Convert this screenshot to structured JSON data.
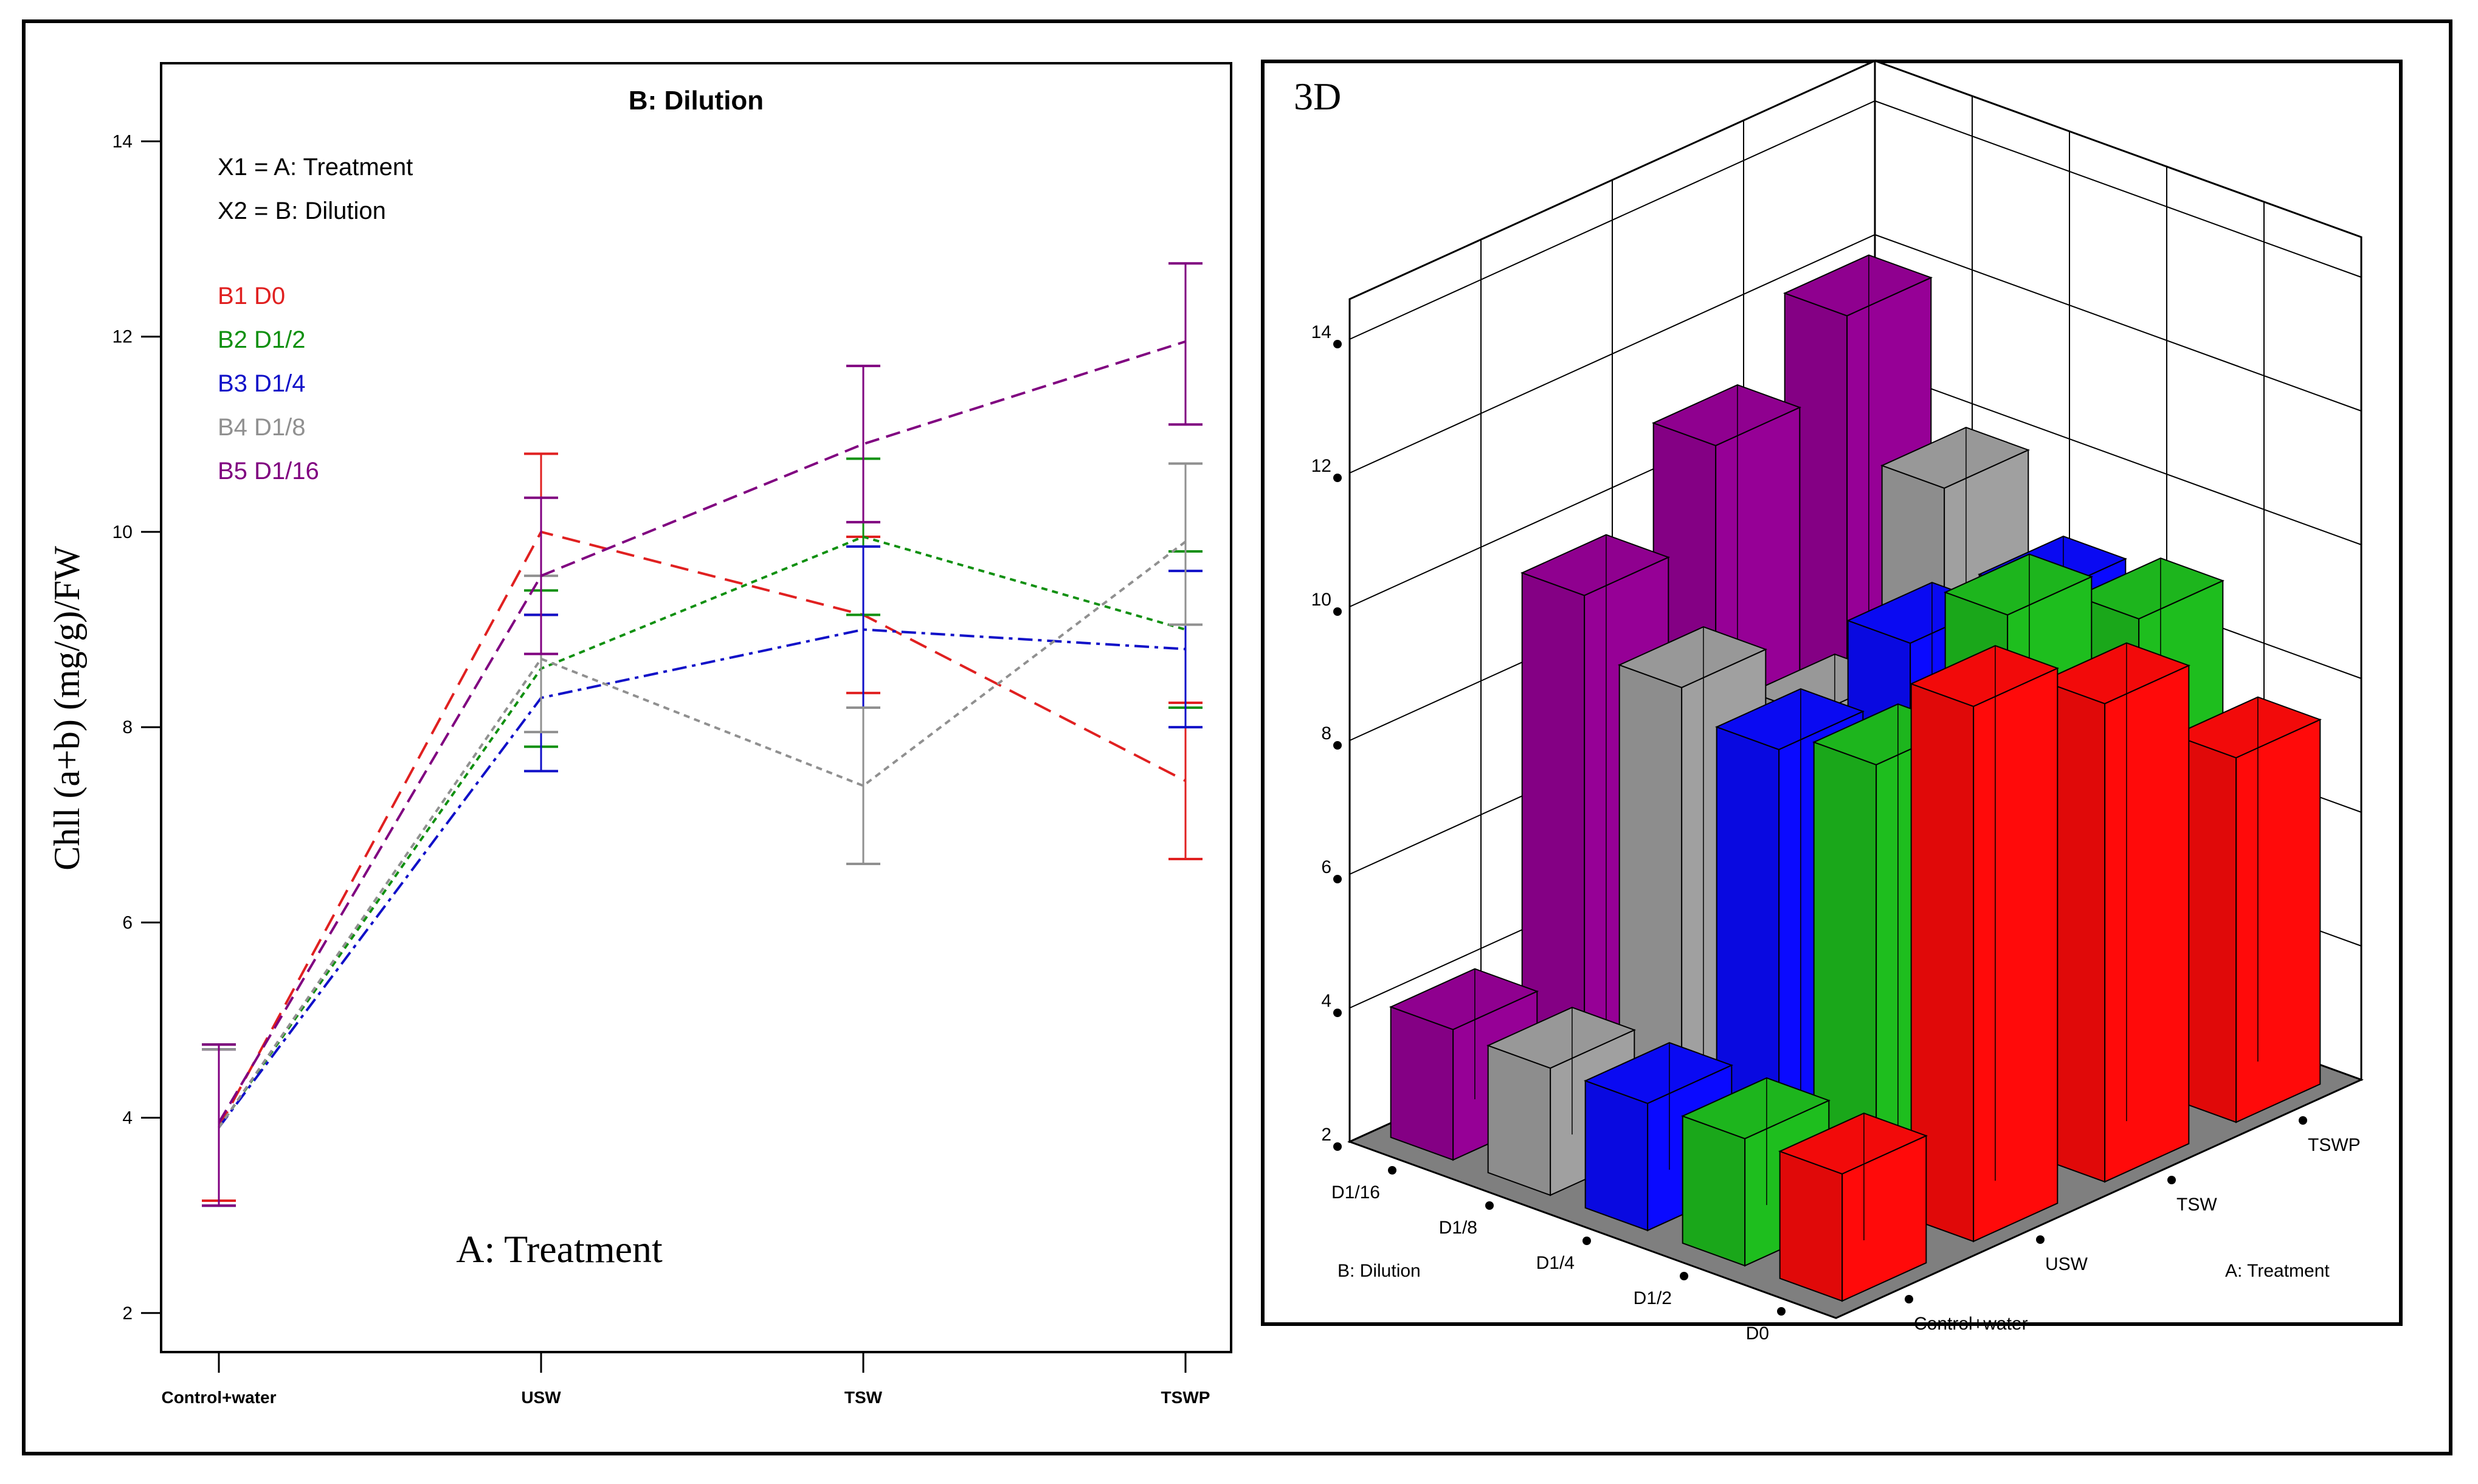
{
  "line_plot": {
    "y_axis_label": "Chll (a+b) (mg/g)/FW",
    "x_axis_label": "A: Treatment",
    "title": "B: Dilution",
    "factor_x1": "X1 = A: Treatment",
    "factor_x2": "X2 = B: Dilution"
  },
  "plot3d": {
    "label": "3D",
    "axis_label_dilution": "B: Dilution",
    "axis_label_treatment": "A: Treatment",
    "z_ticks": [
      "2",
      "4",
      "6",
      "8",
      "10",
      "12",
      "14"
    ],
    "dilutions": [
      "D0",
      "D1/2",
      "D1/4",
      "D1/8",
      "D1/16"
    ],
    "treatments": [
      "Control+water",
      "USW",
      "TSW",
      "TSWP"
    ]
  },
  "chart_data": [
    {
      "type": "line",
      "title": "B: Dilution",
      "xlabel": "A: Treatment",
      "ylabel": "Chll (a+b) (mg/g)/FW",
      "categories": [
        "Control+water",
        "USW",
        "TSW",
        "TSWP"
      ],
      "ylim": [
        1.6,
        14.8
      ],
      "yticks": [
        2,
        4,
        6,
        8,
        10,
        12,
        14
      ],
      "series": [
        {
          "name": "B1 D0",
          "color": "#e02020",
          "dash": "long",
          "values": [
            3.9,
            10.0,
            9.15,
            7.45
          ],
          "error_low": [
            3.15,
            9.15,
            8.35,
            6.65
          ],
          "error_high": [
            4.7,
            10.8,
            9.95,
            8.25
          ]
        },
        {
          "name": "B2 D1/2",
          "color": "#109010",
          "dash": "dot",
          "values": [
            3.9,
            8.6,
            9.95,
            9.0
          ],
          "error_low": [
            3.1,
            7.8,
            9.15,
            8.2
          ],
          "error_high": [
            4.75,
            9.4,
            10.75,
            9.8
          ]
        },
        {
          "name": "B3 D1/4",
          "color": "#1010c8",
          "dash": "dashdot",
          "values": [
            3.9,
            8.3,
            9.0,
            8.8
          ],
          "error_low": [
            3.1,
            7.55,
            8.2,
            8.0
          ],
          "error_high": [
            4.7,
            9.15,
            9.85,
            9.6
          ]
        },
        {
          "name": "B4 D1/8",
          "color": "#909090",
          "dash": "dot",
          "values": [
            3.9,
            8.7,
            7.4,
            9.9
          ],
          "error_low": [
            3.1,
            7.95,
            6.6,
            9.05
          ],
          "error_high": [
            4.7,
            9.55,
            8.2,
            10.7
          ]
        },
        {
          "name": "B5 D1/16",
          "color": "#800080",
          "dash": "medium",
          "values": [
            3.95,
            9.55,
            10.9,
            11.95
          ],
          "error_low": [
            3.1,
            8.75,
            10.1,
            11.1
          ],
          "error_high": [
            4.75,
            10.35,
            11.7,
            12.75
          ]
        }
      ]
    },
    {
      "type": "bar3d",
      "title": "3D",
      "xlabel": "A: Treatment",
      "ylabel": "B: Dilution",
      "zlim": [
        2,
        14
      ],
      "treatments": [
        "Control+water",
        "USW",
        "TSW",
        "TSWP"
      ],
      "dilutions": [
        "D0",
        "D1/2",
        "D1/4",
        "D1/8",
        "D1/16"
      ],
      "colors": {
        "D0": "#ff0a0a",
        "D1/2": "#1ebe1e",
        "D1/4": "#0a0aff",
        "D1/8": "#a0a0a0",
        "D1/16": "#960096"
      },
      "values": {
        "D0": [
          3.9,
          10.0,
          9.15,
          7.45
        ],
        "D1/2": [
          3.9,
          8.6,
          9.95,
          9.0
        ],
        "D1/4": [
          3.9,
          8.3,
          9.0,
          8.8
        ],
        "D1/8": [
          3.9,
          8.7,
          7.4,
          9.9
        ],
        "D1/16": [
          3.95,
          9.55,
          10.9,
          11.95
        ]
      }
    }
  ]
}
